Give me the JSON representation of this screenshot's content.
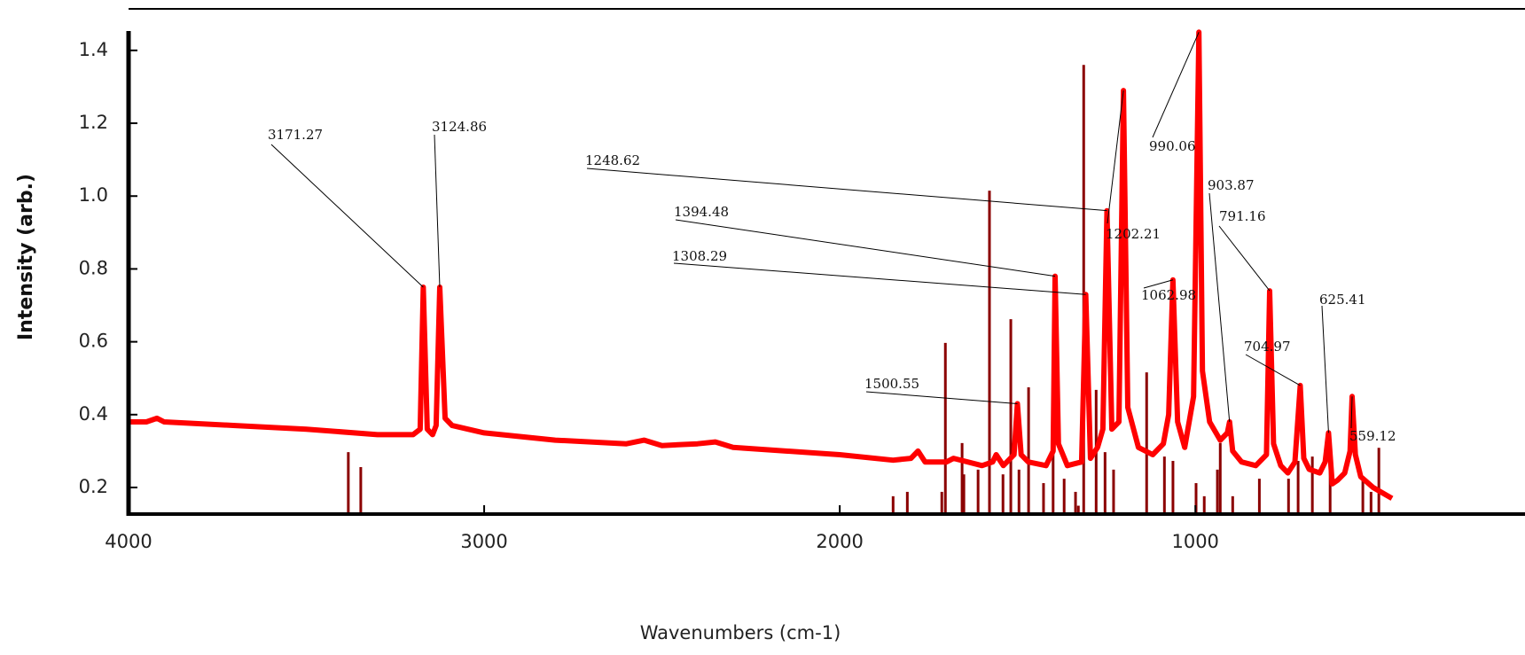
{
  "chart_data": {
    "type": "line",
    "x_label": "Wavenumbers (cm-1)",
    "y_label": "Intensity (arb.)",
    "xlim": [
      4000,
      447
    ],
    "ylim": [
      0.127,
      1.514
    ],
    "xticks": [
      4000,
      3000,
      2000,
      1000
    ],
    "yticks": [
      0.2,
      0.4,
      0.6,
      0.8,
      {
        "value": 1,
        "label": "1.0"
      },
      1.2,
      1.4
    ],
    "spectrum": {
      "color": "#ff0000",
      "x": [
        4000,
        3950,
        3920,
        3900,
        3700,
        3500,
        3300,
        3200,
        3180,
        3171.27,
        3160,
        3145,
        3135,
        3124.86,
        3110,
        3090,
        3000,
        2800,
        2600,
        2550,
        2500,
        2400,
        2350,
        2300,
        2000,
        1850,
        1800,
        1780,
        1760,
        1700,
        1680,
        1600,
        1570,
        1560,
        1540,
        1510,
        1500.55,
        1490,
        1470,
        1420,
        1400,
        1394.48,
        1385,
        1360,
        1320,
        1308.29,
        1295,
        1275,
        1260,
        1248.62,
        1235,
        1215,
        1202.21,
        1190,
        1160,
        1120,
        1090,
        1075,
        1062.98,
        1050,
        1030,
        1005,
        990.06,
        980,
        960,
        930,
        910,
        903.87,
        895,
        870,
        830,
        800,
        791.16,
        780,
        760,
        740,
        720,
        704.97,
        695,
        680,
        650,
        635,
        625.41,
        615,
        600,
        580,
        565,
        559.12,
        550,
        535,
        500,
        447
      ],
      "values": [
        0.38,
        0.38,
        0.39,
        0.38,
        0.37,
        0.36,
        0.345,
        0.345,
        0.36,
        0.75,
        0.36,
        0.345,
        0.37,
        0.75,
        0.39,
        0.37,
        0.35,
        0.33,
        0.32,
        0.33,
        0.315,
        0.32,
        0.325,
        0.31,
        0.29,
        0.275,
        0.28,
        0.3,
        0.27,
        0.27,
        0.28,
        0.26,
        0.27,
        0.29,
        0.26,
        0.29,
        0.43,
        0.29,
        0.27,
        0.26,
        0.3,
        0.78,
        0.32,
        0.26,
        0.27,
        0.73,
        0.28,
        0.31,
        0.36,
        0.96,
        0.36,
        0.38,
        1.29,
        0.42,
        0.31,
        0.29,
        0.32,
        0.4,
        0.77,
        0.38,
        0.31,
        0.45,
        1.45,
        0.52,
        0.38,
        0.33,
        0.35,
        0.38,
        0.3,
        0.27,
        0.26,
        0.29,
        0.74,
        0.32,
        0.26,
        0.24,
        0.27,
        0.48,
        0.28,
        0.25,
        0.24,
        0.27,
        0.35,
        0.21,
        0.22,
        0.24,
        0.3,
        0.45,
        0.29,
        0.23,
        0.2,
        0.17
      ]
    },
    "sticks": {
      "color": "#8b0000",
      "x": [
        3382,
        3347,
        1850,
        1810,
        1713,
        1703,
        1656,
        1651,
        1611,
        1579,
        1541,
        1519,
        1496,
        1469,
        1427,
        1400,
        1369,
        1337,
        1329,
        1314,
        1279,
        1254,
        1230,
        1137,
        1087,
        1063,
        998,
        975,
        938,
        930,
        895,
        820,
        738,
        711,
        671,
        621,
        529,
        506,
        484
      ],
      "values": [
        0.297,
        0.256,
        0.176,
        0.188,
        0.188,
        0.597,
        0.322,
        0.236,
        0.249,
        1.015,
        0.236,
        0.662,
        0.249,
        0.475,
        0.212,
        0.475,
        0.224,
        0.188,
        0.15,
        1.36,
        0.468,
        0.297,
        0.249,
        0.516,
        0.285,
        0.273,
        0.212,
        0.176,
        0.249,
        0.322,
        0.176,
        0.224,
        0.224,
        0.273,
        0.285,
        0.249,
        0.224,
        0.188,
        0.309
      ]
    },
    "annotations": [
      {
        "text": "3171.27",
        "x": 3171.27,
        "y": 0.75
      },
      {
        "text": "3124.86",
        "x": 3124.86,
        "y": 0.75
      },
      {
        "text": "1248.62",
        "x": 1248.62,
        "y": 0.96
      },
      {
        "text": "1394.48",
        "x": 1394.48,
        "y": 0.78
      },
      {
        "text": "1308.29",
        "x": 1308.29,
        "y": 0.73
      },
      {
        "text": "1500.55",
        "x": 1500.55,
        "y": 0.43
      },
      {
        "text": "1202.21",
        "x": 1202.21,
        "y": 1.29
      },
      {
        "text": "990.06",
        "x": 990.06,
        "y": 1.45
      },
      {
        "text": "903.87",
        "x": 903.87,
        "y": 0.38
      },
      {
        "text": "791.16",
        "x": 791.16,
        "y": 0.74
      },
      {
        "text": "1062.98",
        "x": 1062.98,
        "y": 0.77
      },
      {
        "text": "704.97",
        "x": 704.97,
        "y": 0.48
      },
      {
        "text": "625.41",
        "x": 625.41,
        "y": 0.35
      },
      {
        "text": "559.12",
        "x": 559.12,
        "y": 0.45
      }
    ]
  }
}
